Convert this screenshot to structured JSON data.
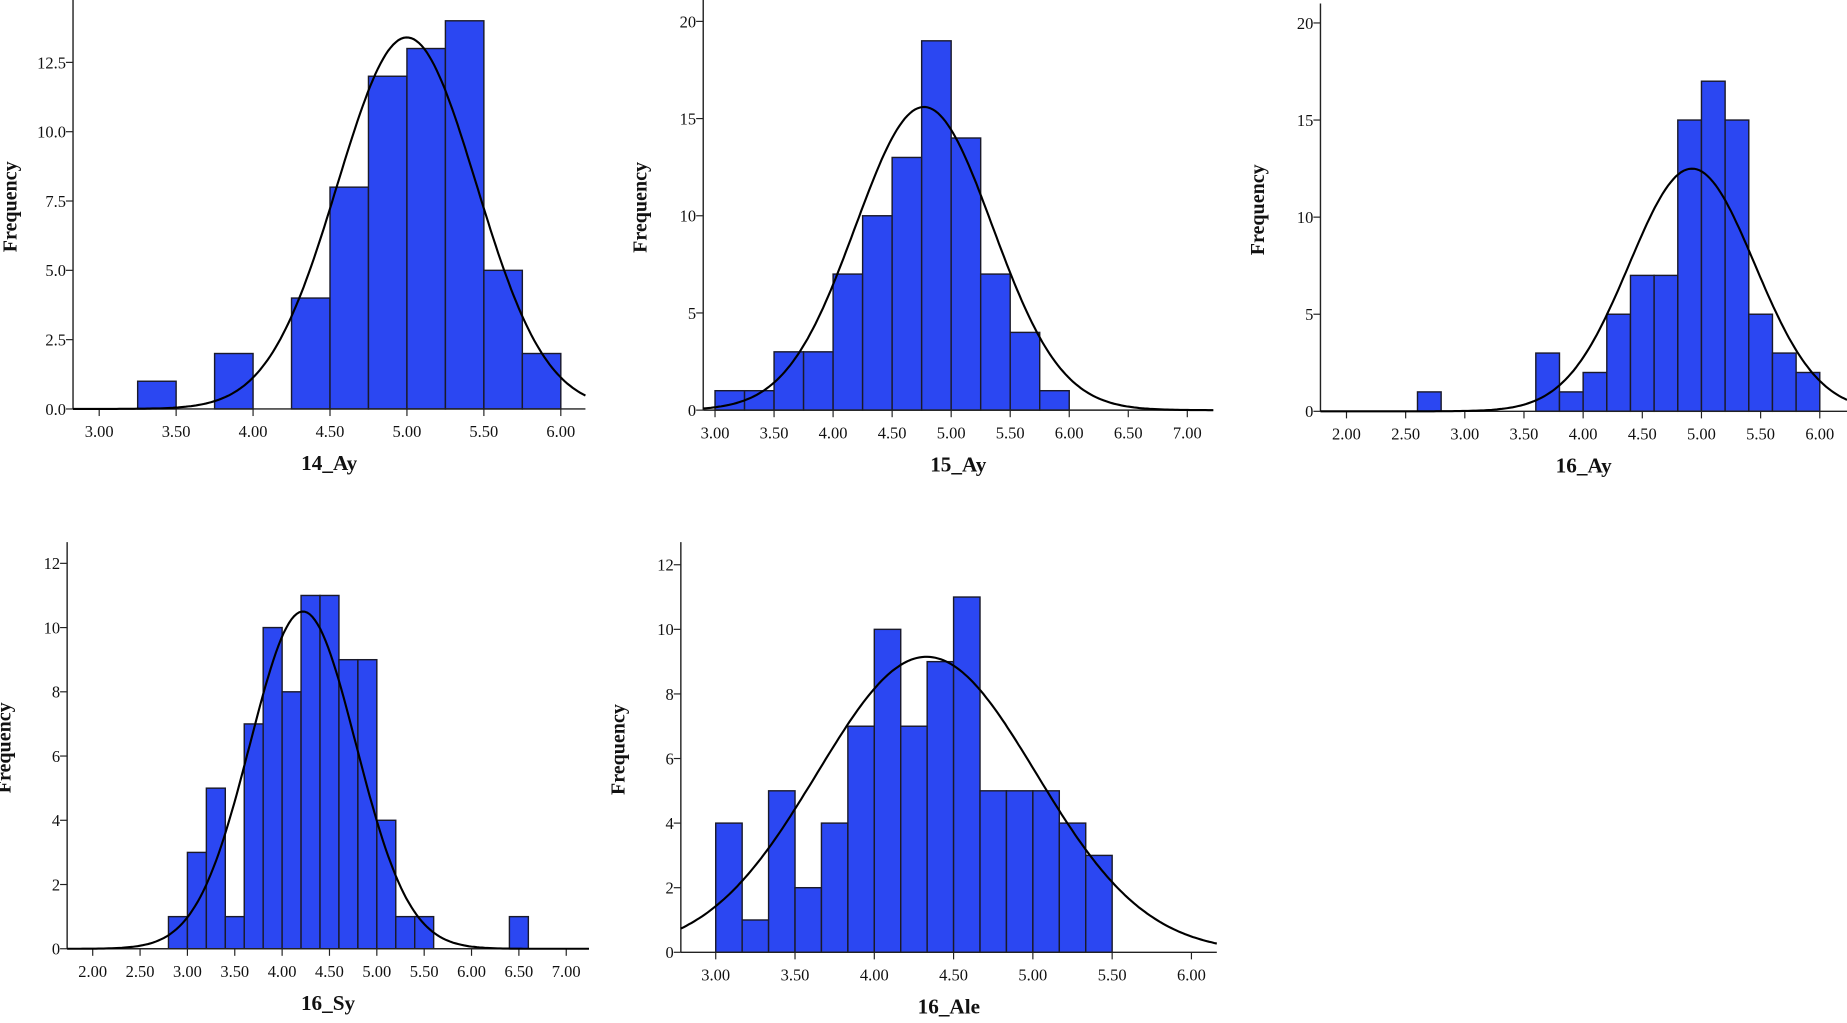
{
  "colors": {
    "bar_fill": "#2b47f2",
    "bar_stroke": "#1a1a2a",
    "curve": "#000000",
    "axis": "#222222"
  },
  "chart_data": [
    {
      "type": "bar",
      "title": "14_Ay",
      "xlabel": "14_Ay",
      "ylabel": "Frequency",
      "xlim": [
        2.83,
        6.16
      ],
      "ylim": [
        0,
        14.75
      ],
      "xticks": [
        3.0,
        3.5,
        4.0,
        4.5,
        5.0,
        5.5,
        6.0
      ],
      "xtick_labels": [
        "3.00",
        "3.50",
        "4.00",
        "4.50",
        "5.00",
        "5.50",
        "6.00"
      ],
      "yticks": [
        0,
        2.5,
        5,
        7.5,
        10,
        12.5
      ],
      "ytick_labels": [
        "0.0",
        "2.5",
        "5.0",
        "7.5",
        "10.0",
        "12.5"
      ],
      "bin_start": 3.25,
      "bin_width": 0.25,
      "counts": [
        1,
        0,
        2,
        0,
        4,
        8,
        12,
        13,
        14,
        5,
        2
      ],
      "normal_curve": {
        "mean": 5.0,
        "sd": 0.45,
        "peak": 13.4
      }
    },
    {
      "type": "bar",
      "title": "15_Ay",
      "xlabel": "15_Ay",
      "ylabel": "Frequency",
      "xlim": [
        2.9,
        7.22
      ],
      "ylim": [
        0,
        21.1
      ],
      "xticks": [
        3.0,
        3.5,
        4.0,
        4.5,
        5.0,
        5.5,
        6.0,
        6.5,
        7.0
      ],
      "xtick_labels": [
        "3.00",
        "3.50",
        "4.00",
        "4.50",
        "5.00",
        "5.50",
        "6.00",
        "6.50",
        "7.00"
      ],
      "yticks": [
        0,
        5,
        10,
        15,
        20
      ],
      "ytick_labels": [
        "0",
        "5",
        "10",
        "15",
        "20"
      ],
      "bin_start": 3.0,
      "bin_width": 0.25,
      "counts": [
        1,
        1,
        3,
        3,
        7,
        10,
        13,
        19,
        14,
        7,
        4,
        1
      ],
      "normal_curve": {
        "mean": 4.77,
        "sd": 0.58,
        "peak": 15.6
      }
    },
    {
      "type": "bar",
      "title": "16_Ay",
      "xlabel": "16_Ay",
      "ylabel": "Frequency",
      "xlim": [
        1.78,
        6.23
      ],
      "ylim": [
        0,
        21
      ],
      "xticks": [
        2.0,
        2.5,
        3.0,
        3.5,
        4.0,
        4.5,
        5.0,
        5.5,
        6.0
      ],
      "xtick_labels": [
        "2.00",
        "2.50",
        "3.00",
        "3.50",
        "4.00",
        "4.50",
        "5.00",
        "5.50",
        "6.00"
      ],
      "yticks": [
        0,
        5,
        10,
        15,
        20
      ],
      "ytick_labels": [
        "0",
        "5",
        "10",
        "15",
        "20"
      ],
      "bin_start": 2.6,
      "bin_width": 0.2,
      "counts": [
        1,
        0,
        0,
        0,
        0,
        3,
        1,
        2,
        5,
        7,
        7,
        15,
        17,
        15,
        5,
        3,
        2
      ],
      "normal_curve": {
        "mean": 4.92,
        "sd": 0.53,
        "peak": 12.5
      }
    },
    {
      "type": "bar",
      "title": "16_Sy",
      "xlabel": "16_Sy",
      "ylabel": "Frequency",
      "xlim": [
        1.73,
        7.24
      ],
      "ylim": [
        0,
        12.66
      ],
      "xticks": [
        2.0,
        2.5,
        3.0,
        3.5,
        4.0,
        4.5,
        5.0,
        5.5,
        6.0,
        6.5,
        7.0
      ],
      "xtick_labels": [
        "2.00",
        "2.50",
        "3.00",
        "3.50",
        "4.00",
        "4.50",
        "5.00",
        "5.50",
        "6.00",
        "6.50",
        "7.00"
      ],
      "yticks": [
        0,
        2,
        4,
        6,
        8,
        10,
        12
      ],
      "ytick_labels": [
        "0",
        "2",
        "4",
        "6",
        "8",
        "10",
        "12"
      ],
      "bin_start": 2.8,
      "bin_width": 0.2,
      "counts": [
        1,
        3,
        5,
        1,
        7,
        10,
        8,
        11,
        11,
        9,
        9,
        4,
        1,
        1,
        0,
        0,
        0,
        0,
        1
      ],
      "normal_curve": {
        "mean": 4.22,
        "sd": 0.56,
        "peak": 10.5
      }
    },
    {
      "type": "bar",
      "title": "16_Ale",
      "xlabel": "16_Ale",
      "ylabel": "Frequency",
      "xlim": [
        2.78,
        6.16
      ],
      "ylim": [
        0,
        12.7
      ],
      "xticks": [
        3.0,
        3.5,
        4.0,
        4.5,
        5.0,
        5.5,
        6.0
      ],
      "xtick_labels": [
        "3.00",
        "3.50",
        "4.00",
        "4.50",
        "5.00",
        "5.50",
        "6.00"
      ],
      "yticks": [
        0,
        2,
        4,
        6,
        8,
        10,
        12
      ],
      "ytick_labels": [
        "0",
        "2",
        "4",
        "6",
        "8",
        "10",
        "12"
      ],
      "bin_start": 3.0,
      "bin_width": 0.16667,
      "counts": [
        4,
        1,
        5,
        2,
        4,
        7,
        10,
        7,
        9,
        11,
        5,
        5,
        5,
        4,
        3
      ],
      "normal_curve": {
        "mean": 4.33,
        "sd": 0.69,
        "peak": 9.15
      }
    }
  ]
}
